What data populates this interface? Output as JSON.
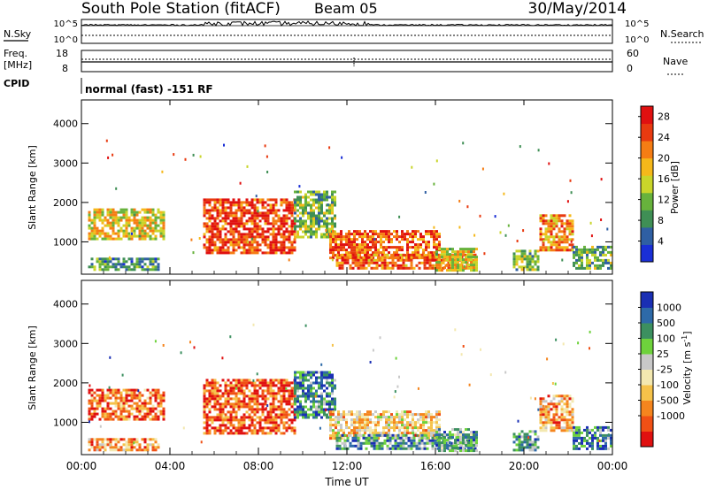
{
  "header": {
    "title": "South Pole Station (fitACF)",
    "beam": "Beam 05",
    "date": "30/May/2014"
  },
  "status_panel": {
    "nsky_label": "N.Sky",
    "nsearch_label": "N.Search",
    "left_ticks": [
      "10^5",
      "10^0"
    ],
    "right_ticks": [
      "10^5",
      "10^0"
    ],
    "freq_label_line1": "Freq.",
    "freq_label_line2": "[MHz]",
    "freq_ticks": [
      "18",
      "8"
    ],
    "nave_label": "Nave",
    "nave_ticks": [
      "60",
      "0"
    ],
    "cpid_label": "CPID",
    "cpid_value": "normal (fast) -151 RF"
  },
  "colors": {
    "power": [
      "#1a2fd6",
      "#2f5fa3",
      "#3f8f55",
      "#67b23c",
      "#c9d52a",
      "#f5b81a",
      "#f57d14",
      "#e83a10",
      "#e01010"
    ],
    "velocity": [
      "#e01010",
      "#f05015",
      "#f5851e",
      "#f5c24a",
      "#f3e8b0",
      "#c8c8c8",
      "#6ed23c",
      "#3c9060",
      "#2e6aa8",
      "#1a2fb4"
    ]
  },
  "chart_data": [
    {
      "type": "heatmap",
      "panel": "power",
      "xlabel": "",
      "ylabel": "Slant Range [km]",
      "x_ticks": [
        "00:00",
        "04:00",
        "08:00",
        "12:00",
        "16:00",
        "20:00",
        "00:00"
      ],
      "xlim_hours": [
        0,
        24
      ],
      "y_ticks": [
        1000,
        2000,
        3000,
        4000
      ],
      "ylim_km": [
        180,
        4600
      ],
      "colorbar_label": "Power [dB]",
      "colorbar_ticks": [
        4,
        8,
        12,
        16,
        20,
        24,
        28
      ],
      "colorbar_range": [
        0,
        30
      ],
      "regions": [
        {
          "t0": 0.3,
          "t1": 3.7,
          "r0": 1100,
          "r1": 1850,
          "level": 0.55
        },
        {
          "t0": 0.3,
          "t1": 3.5,
          "r0": 300,
          "r1": 600,
          "level": 0.3
        },
        {
          "t0": 5.5,
          "t1": 9.6,
          "r0": 700,
          "r1": 2100,
          "level": 0.85
        },
        {
          "t0": 9.6,
          "t1": 11.5,
          "r0": 1100,
          "r1": 2300,
          "level": 0.4
        },
        {
          "t0": 11.2,
          "t1": 16.2,
          "r0": 600,
          "r1": 1300,
          "level": 0.8
        },
        {
          "t0": 11.5,
          "t1": 17.8,
          "r0": 300,
          "r1": 700,
          "level": 0.75
        },
        {
          "t0": 16.0,
          "t1": 17.9,
          "r0": 300,
          "r1": 850,
          "level": 0.55
        },
        {
          "t0": 19.5,
          "t1": 20.7,
          "r0": 300,
          "r1": 800,
          "level": 0.4
        },
        {
          "t0": 20.7,
          "t1": 22.2,
          "r0": 800,
          "r1": 1700,
          "level": 0.7
        },
        {
          "t0": 22.2,
          "t1": 24.0,
          "r0": 300,
          "r1": 900,
          "level": 0.35
        }
      ]
    },
    {
      "type": "heatmap",
      "panel": "velocity",
      "xlabel": "Time UT",
      "ylabel": "Slant Range [km]",
      "x_ticks": [
        "00:00",
        "04:00",
        "08:00",
        "12:00",
        "16:00",
        "20:00",
        "00:00"
      ],
      "xlim_hours": [
        0,
        24
      ],
      "y_ticks": [
        1000,
        2000,
        3000,
        4000
      ],
      "ylim_km": [
        180,
        4600
      ],
      "colorbar_label": "Velocity [m s^-1]",
      "colorbar_ticks": [
        "1000",
        "500",
        "100",
        "25",
        "-25",
        "-100",
        "-500",
        "-1000"
      ],
      "regions": [
        {
          "t0": 0.3,
          "t1": 3.7,
          "r0": 1100,
          "r1": 1850,
          "level": 0.2
        },
        {
          "t0": 0.3,
          "t1": 3.5,
          "r0": 300,
          "r1": 600,
          "level": 0.3
        },
        {
          "t0": 5.5,
          "t1": 9.6,
          "r0": 700,
          "r1": 2100,
          "level": 0.15
        },
        {
          "t0": 9.6,
          "t1": 11.5,
          "r0": 1100,
          "r1": 2300,
          "level": 0.8
        },
        {
          "t0": 11.2,
          "t1": 16.2,
          "r0": 600,
          "r1": 1300,
          "level": 0.4
        },
        {
          "t0": 11.5,
          "t1": 17.8,
          "r0": 300,
          "r1": 700,
          "level": 0.75
        },
        {
          "t0": 16.0,
          "t1": 17.9,
          "r0": 300,
          "r1": 850,
          "level": 0.7
        },
        {
          "t0": 19.5,
          "t1": 20.7,
          "r0": 300,
          "r1": 800,
          "level": 0.72
        },
        {
          "t0": 20.7,
          "t1": 22.2,
          "r0": 800,
          "r1": 1700,
          "level": 0.3
        },
        {
          "t0": 22.2,
          "t1": 24.0,
          "r0": 300,
          "r1": 900,
          "level": 0.8
        }
      ]
    }
  ]
}
